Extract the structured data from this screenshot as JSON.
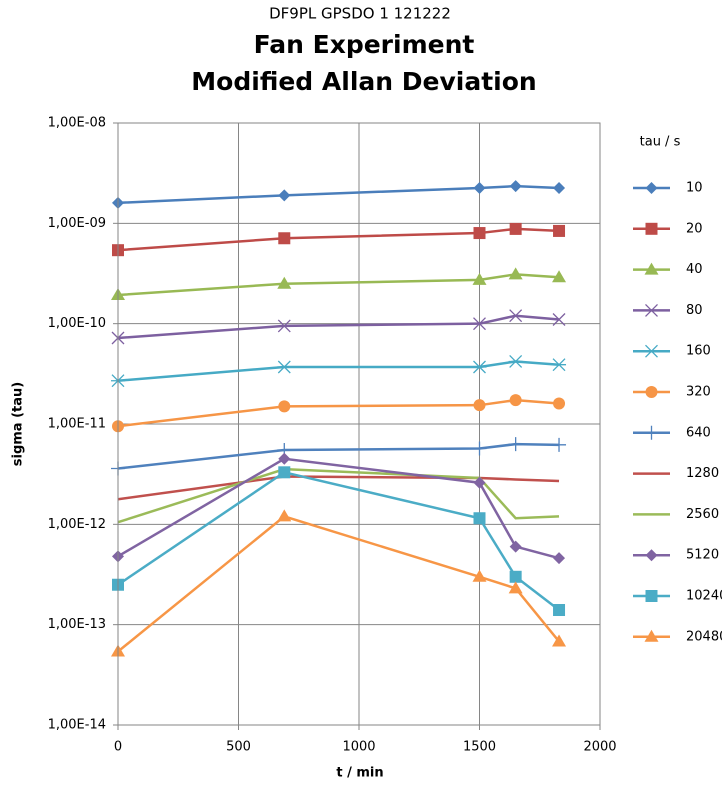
{
  "chart_data": {
    "type": "line",
    "subtitle": "DF9PL GPSDO 1 121222",
    "title": [
      "Fan Experiment",
      "Modified Allan Deviation"
    ],
    "x_label": "t / min",
    "y_label": "sigma (tau)",
    "legend_title": "tau / s",
    "legend_position": "right",
    "log_y": true,
    "grid": true,
    "x": [
      0,
      690,
      1500,
      1650,
      1830
    ],
    "xlim": [
      0,
      2000
    ],
    "xticks": [
      0,
      500,
      1000,
      1500,
      2000
    ],
    "ylim": [
      1e-14,
      1e-08
    ],
    "yticks": [
      {
        "value": 1e-14,
        "label": "1,00E-14"
      },
      {
        "value": 1e-13,
        "label": "1,00E-13"
      },
      {
        "value": 1e-12,
        "label": "1,00E-12"
      },
      {
        "value": 1e-11,
        "label": "1,00E-11"
      },
      {
        "value": 1e-10,
        "label": "1,00E-10"
      },
      {
        "value": 1e-09,
        "label": "1,00E-09"
      },
      {
        "value": 1e-08,
        "label": "1,00E-08"
      }
    ],
    "series": [
      {
        "name": "10",
        "color": "#4a7ebb",
        "marker": "diamond",
        "values": [
          1.6e-09,
          1.9e-09,
          2.25e-09,
          2.35e-09,
          2.25e-09
        ]
      },
      {
        "name": "20",
        "color": "#be4b48",
        "marker": "square",
        "values": [
          5.4e-10,
          7.1e-10,
          8e-10,
          8.8e-10,
          8.4e-10
        ]
      },
      {
        "name": "40",
        "color": "#98b954",
        "marker": "triangle",
        "values": [
          1.93e-10,
          2.5e-10,
          2.73e-10,
          3.1e-10,
          2.9e-10
        ]
      },
      {
        "name": "80",
        "color": "#7d60a0",
        "marker": "x",
        "values": [
          7.2e-11,
          9.5e-11,
          1e-10,
          1.2e-10,
          1.1e-10
        ]
      },
      {
        "name": "160",
        "color": "#46aac5",
        "marker": "star",
        "values": [
          2.7e-11,
          3.7e-11,
          3.7e-11,
          4.2e-11,
          3.9e-11
        ]
      },
      {
        "name": "320",
        "color": "#f69546",
        "marker": "circle",
        "values": [
          9.5e-12,
          1.5e-11,
          1.54e-11,
          1.73e-11,
          1.6e-11
        ]
      },
      {
        "name": "640",
        "color": "#4f81bd",
        "marker": "plus",
        "values": [
          3.6e-12,
          5.5e-12,
          5.7e-12,
          6.3e-12,
          6.2e-12
        ]
      },
      {
        "name": "1280",
        "color": "#c0504d",
        "marker": "none",
        "values": [
          1.78e-12,
          3e-12,
          2.9e-12,
          2.8e-12,
          2.7e-12
        ]
      },
      {
        "name": "2560",
        "color": "#9bbb59",
        "marker": "none",
        "values": [
          1.05e-12,
          3.55e-12,
          2.9e-12,
          1.15e-12,
          1.2e-12
        ]
      },
      {
        "name": "5120",
        "color": "#8064a2",
        "marker": "diamond",
        "values": [
          4.8e-13,
          4.5e-12,
          2.6e-12,
          6e-13,
          4.6e-13
        ]
      },
      {
        "name": "10240",
        "color": "#4bacc6",
        "marker": "square",
        "values": [
          2.5e-13,
          3.3e-12,
          1.15e-12,
          3e-13,
          1.4e-13
        ]
      },
      {
        "name": "20480",
        "color": "#f79646",
        "marker": "triangle",
        "values": [
          5.4e-14,
          1.2e-12,
          3e-13,
          2.3e-13,
          6.8e-14
        ]
      }
    ]
  }
}
